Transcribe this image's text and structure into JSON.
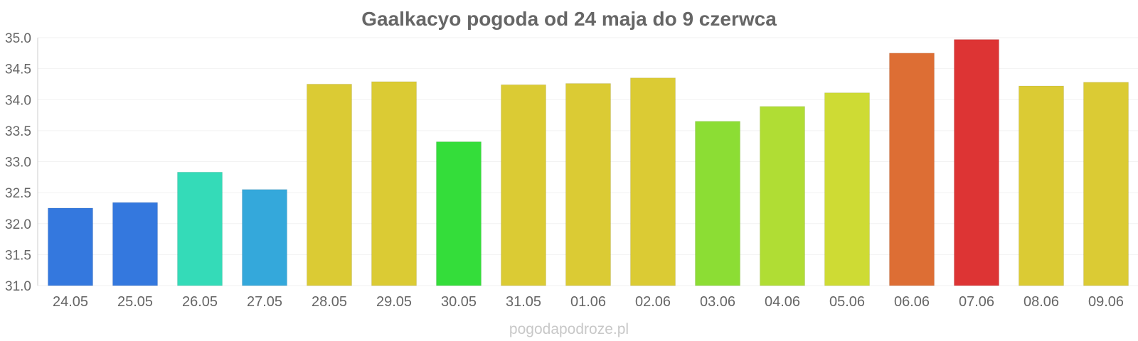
{
  "chart_data": {
    "type": "bar",
    "title": "Gaalkacyo pogoda od 24 maja do 9 czerwca",
    "xlabel": "",
    "ylabel": "",
    "ylim": [
      31.0,
      35.0
    ],
    "yticks": [
      "31.0",
      "31.5",
      "32.0",
      "32.5",
      "33.0",
      "33.5",
      "34.0",
      "34.5",
      "35.0"
    ],
    "categories": [
      "24.05",
      "25.05",
      "26.05",
      "27.05",
      "28.05",
      "29.05",
      "30.05",
      "31.05",
      "01.06",
      "02.06",
      "03.06",
      "04.06",
      "05.06",
      "06.06",
      "07.06",
      "08.06",
      "09.06"
    ],
    "values": [
      32.25,
      32.34,
      32.83,
      32.55,
      34.25,
      34.29,
      33.32,
      34.24,
      34.26,
      34.35,
      33.65,
      33.89,
      34.11,
      34.75,
      34.97,
      34.22,
      34.28
    ],
    "colors": [
      "#3478de",
      "#3478de",
      "#34dbb8",
      "#34a8db",
      "#dbcb34",
      "#dbcb34",
      "#34dd3a",
      "#dbcb34",
      "#dbcb34",
      "#dbcb34",
      "#8cdd34",
      "#b0dd34",
      "#cedb34",
      "#dd6e34",
      "#dd3434",
      "#dbcb34",
      "#dbcb34"
    ],
    "grid": true,
    "legend": "none"
  },
  "watermark": "pogodapodroze.pl"
}
